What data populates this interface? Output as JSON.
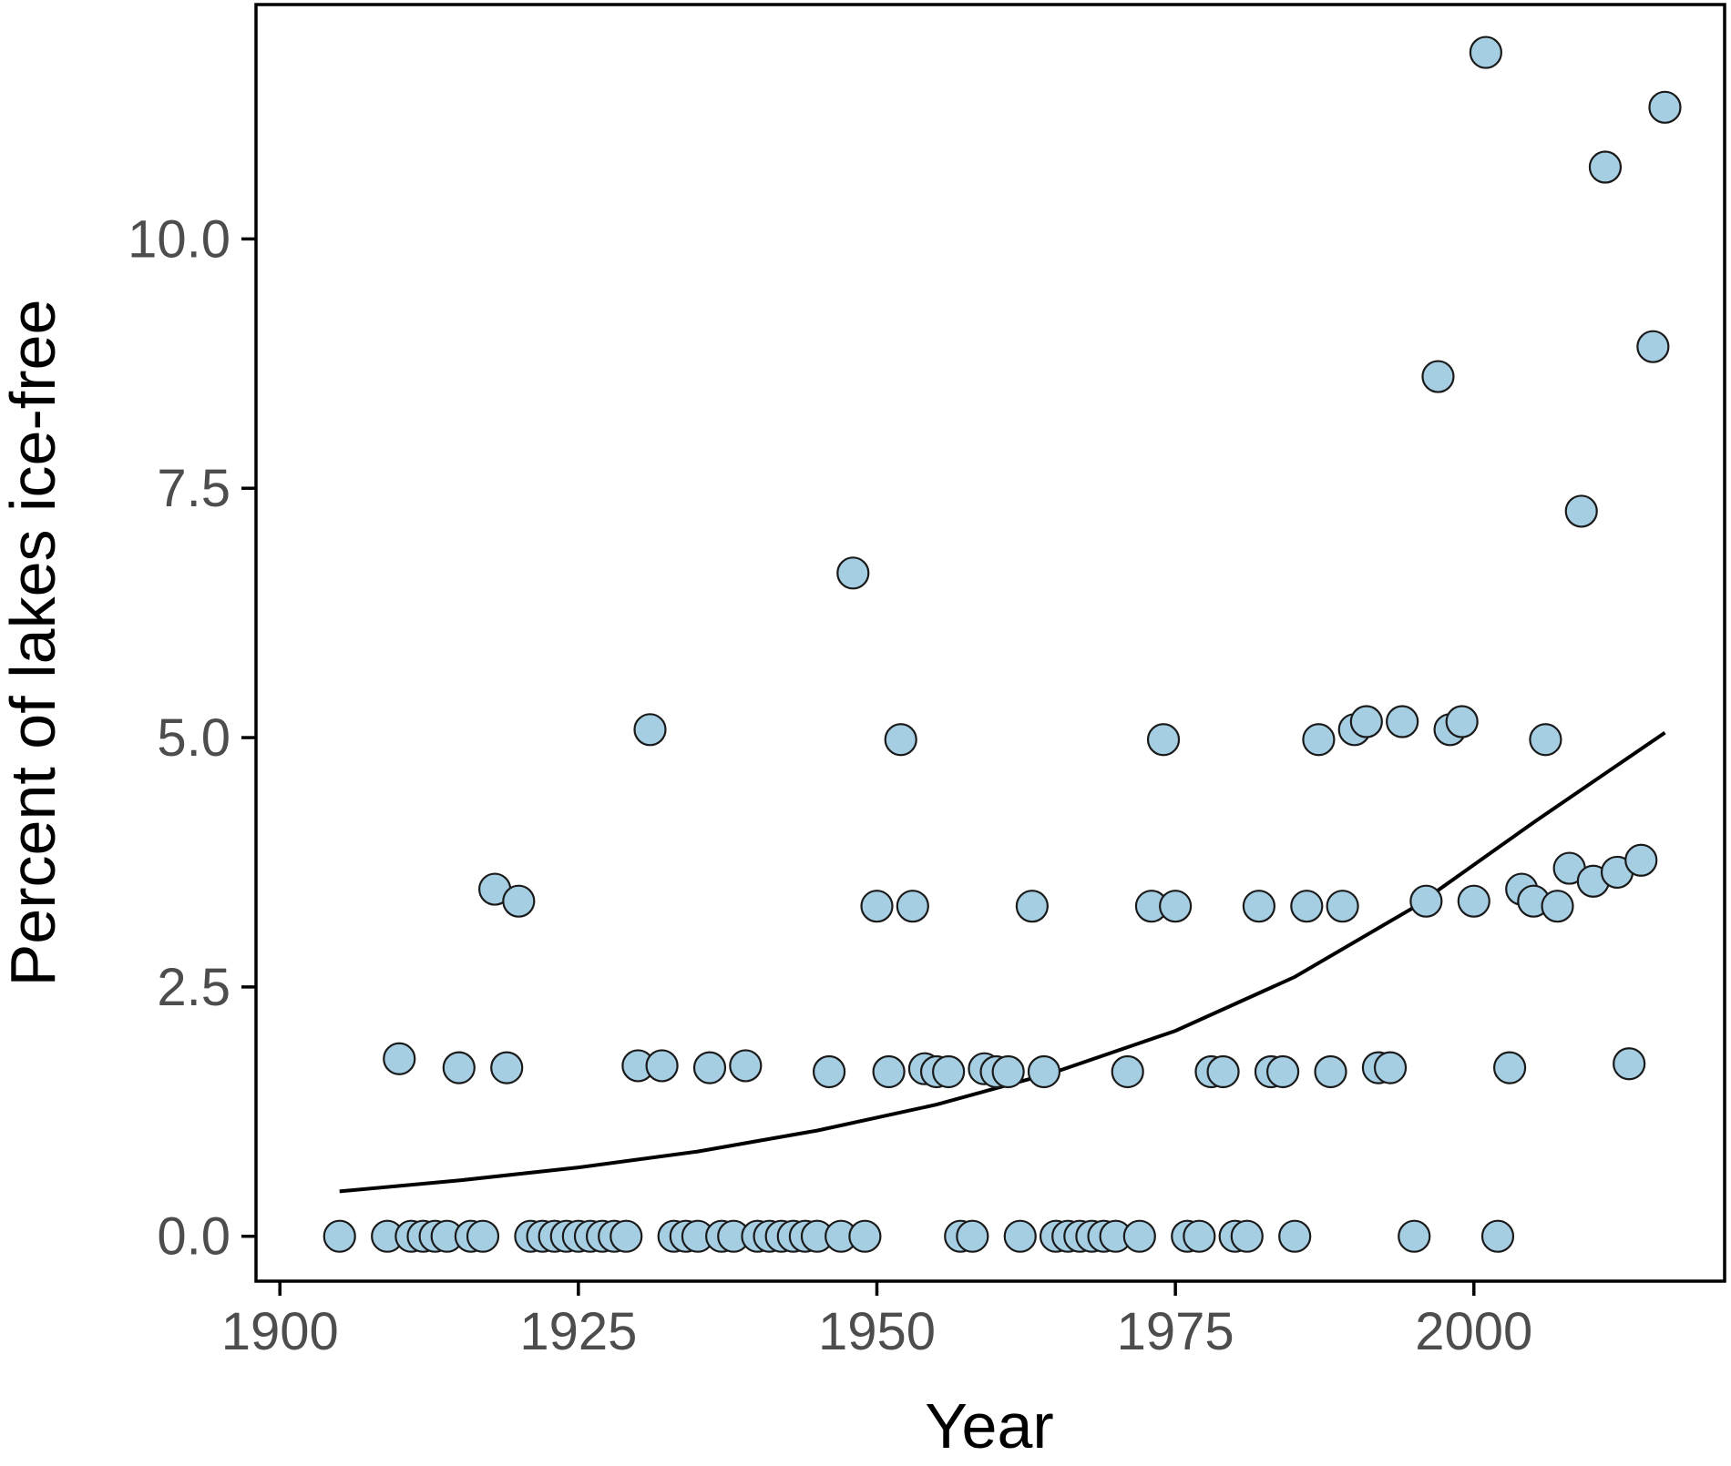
{
  "chart_data": {
    "type": "scatter",
    "title": "",
    "xlabel": "Year",
    "ylabel": "Percent of lakes ice-free",
    "xlim": [
      1898,
      2021
    ],
    "ylim": [
      -0.45,
      12.35
    ],
    "grid": false,
    "legend": "none",
    "colors": {
      "point_fill": "#a6cee3",
      "point_stroke": "#1a1a1a",
      "trend": "#000000",
      "axis": "#000000"
    },
    "x_ticks": [
      1900,
      1925,
      1950,
      1975,
      2000
    ],
    "x_tick_labels": [
      "1900",
      "1925",
      "1950",
      "1975",
      "2000"
    ],
    "y_ticks": [
      0.0,
      2.5,
      5.0,
      7.5,
      10.0
    ],
    "y_tick_labels": [
      "0.0",
      "2.5",
      "5.0",
      "7.5",
      "10.0"
    ],
    "points": [
      [
        1905,
        0.0
      ],
      [
        1909,
        0.0
      ],
      [
        1910,
        1.78
      ],
      [
        1911,
        0.0
      ],
      [
        1912,
        0.0
      ],
      [
        1913,
        0.0
      ],
      [
        1914,
        0.0
      ],
      [
        1915,
        1.69
      ],
      [
        1916,
        0.0
      ],
      [
        1917,
        0.0
      ],
      [
        1918,
        3.48
      ],
      [
        1919,
        1.69
      ],
      [
        1920,
        3.36
      ],
      [
        1921,
        0.0
      ],
      [
        1922,
        0.0
      ],
      [
        1923,
        0.0
      ],
      [
        1924,
        0.0
      ],
      [
        1925,
        0.0
      ],
      [
        1926,
        0.0
      ],
      [
        1927,
        0.0
      ],
      [
        1928,
        0.0
      ],
      [
        1929,
        0.0
      ],
      [
        1930,
        1.71
      ],
      [
        1931,
        5.08
      ],
      [
        1932,
        1.71
      ],
      [
        1933,
        0.0
      ],
      [
        1934,
        0.0
      ],
      [
        1935,
        0.0
      ],
      [
        1936,
        1.69
      ],
      [
        1937,
        0.0
      ],
      [
        1938,
        0.0
      ],
      [
        1939,
        1.71
      ],
      [
        1940,
        0.0
      ],
      [
        1941,
        0.0
      ],
      [
        1942,
        0.0
      ],
      [
        1943,
        0.0
      ],
      [
        1944,
        0.0
      ],
      [
        1945,
        0.0
      ],
      [
        1946,
        1.65
      ],
      [
        1947,
        0.0
      ],
      [
        1948,
        6.65
      ],
      [
        1949,
        0.0
      ],
      [
        1950,
        3.31
      ],
      [
        1951,
        1.65
      ],
      [
        1952,
        4.98
      ],
      [
        1953,
        3.31
      ],
      [
        1954,
        1.68
      ],
      [
        1955,
        1.65
      ],
      [
        1956,
        1.65
      ],
      [
        1957,
        0.0
      ],
      [
        1958,
        0.0
      ],
      [
        1959,
        1.68
      ],
      [
        1960,
        1.65
      ],
      [
        1961,
        1.65
      ],
      [
        1962,
        0.0
      ],
      [
        1963,
        3.31
      ],
      [
        1964,
        1.65
      ],
      [
        1965,
        0.0
      ],
      [
        1966,
        0.0
      ],
      [
        1967,
        0.0
      ],
      [
        1968,
        0.0
      ],
      [
        1969,
        0.0
      ],
      [
        1970,
        0.0
      ],
      [
        1971,
        1.65
      ],
      [
        1972,
        0.0
      ],
      [
        1973,
        3.31
      ],
      [
        1974,
        4.98
      ],
      [
        1975,
        3.31
      ],
      [
        1976,
        0.0
      ],
      [
        1977,
        0.0
      ],
      [
        1978,
        1.65
      ],
      [
        1979,
        1.65
      ],
      [
        1980,
        0.0
      ],
      [
        1981,
        0.0
      ],
      [
        1982,
        3.31
      ],
      [
        1983,
        1.65
      ],
      [
        1984,
        1.65
      ],
      [
        1985,
        0.0
      ],
      [
        1986,
        3.31
      ],
      [
        1987,
        4.98
      ],
      [
        1988,
        1.65
      ],
      [
        1989,
        3.31
      ],
      [
        1990,
        5.08
      ],
      [
        1991,
        5.16
      ],
      [
        1992,
        1.69
      ],
      [
        1993,
        1.69
      ],
      [
        1994,
        5.16
      ],
      [
        1995,
        0.0
      ],
      [
        1996,
        3.36
      ],
      [
        1997,
        8.62
      ],
      [
        1998,
        5.08
      ],
      [
        1999,
        5.16
      ],
      [
        2000,
        3.36
      ],
      [
        2001,
        11.87
      ],
      [
        2002,
        0.0
      ],
      [
        2003,
        1.69
      ],
      [
        2004,
        3.48
      ],
      [
        2005,
        3.36
      ],
      [
        2006,
        4.98
      ],
      [
        2007,
        3.31
      ],
      [
        2008,
        3.69
      ],
      [
        2009,
        7.27
      ],
      [
        2010,
        3.56
      ],
      [
        2011,
        10.72
      ],
      [
        2012,
        3.65
      ],
      [
        2013,
        1.73
      ],
      [
        2014,
        3.77
      ],
      [
        2015,
        8.92
      ],
      [
        2016,
        11.32
      ]
    ],
    "trend_line": {
      "x": [
        1905,
        1915,
        1925,
        1935,
        1945,
        1955,
        1965,
        1975,
        1985,
        1995,
        2005,
        2016
      ],
      "y": [
        0.45,
        0.56,
        0.69,
        0.85,
        1.06,
        1.32,
        1.65,
        2.06,
        2.6,
        3.3,
        4.15,
        5.05
      ]
    }
  }
}
